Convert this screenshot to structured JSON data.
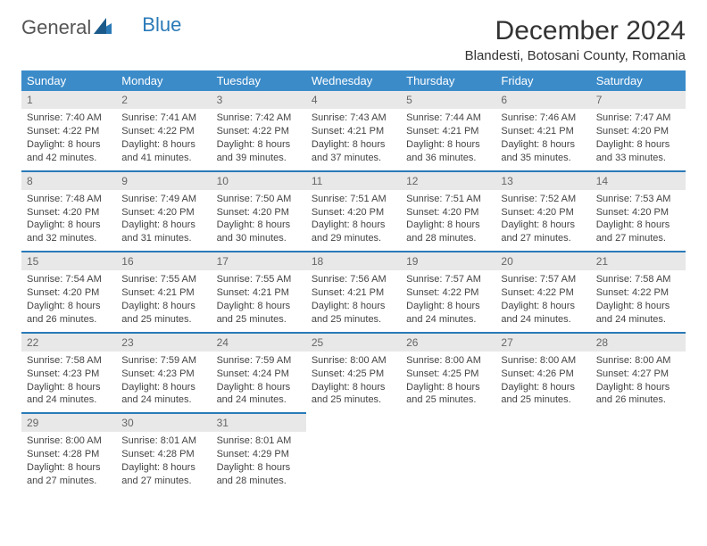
{
  "brand": {
    "part1": "General",
    "part2": "Blue"
  },
  "title": "December 2024",
  "location": "Blandesti, Botosani County, Romania",
  "colors": {
    "header_bg": "#3b8bc9",
    "frame": "#2a7ab8",
    "daynum_bg": "#e8e8e8"
  },
  "weekdays": [
    "Sunday",
    "Monday",
    "Tuesday",
    "Wednesday",
    "Thursday",
    "Friday",
    "Saturday"
  ],
  "weeks": [
    [
      {
        "n": "1",
        "sr": "7:40 AM",
        "ss": "4:22 PM",
        "dl": "8 hours and 42 minutes."
      },
      {
        "n": "2",
        "sr": "7:41 AM",
        "ss": "4:22 PM",
        "dl": "8 hours and 41 minutes."
      },
      {
        "n": "3",
        "sr": "7:42 AM",
        "ss": "4:22 PM",
        "dl": "8 hours and 39 minutes."
      },
      {
        "n": "4",
        "sr": "7:43 AM",
        "ss": "4:21 PM",
        "dl": "8 hours and 37 minutes."
      },
      {
        "n": "5",
        "sr": "7:44 AM",
        "ss": "4:21 PM",
        "dl": "8 hours and 36 minutes."
      },
      {
        "n": "6",
        "sr": "7:46 AM",
        "ss": "4:21 PM",
        "dl": "8 hours and 35 minutes."
      },
      {
        "n": "7",
        "sr": "7:47 AM",
        "ss": "4:20 PM",
        "dl": "8 hours and 33 minutes."
      }
    ],
    [
      {
        "n": "8",
        "sr": "7:48 AM",
        "ss": "4:20 PM",
        "dl": "8 hours and 32 minutes."
      },
      {
        "n": "9",
        "sr": "7:49 AM",
        "ss": "4:20 PM",
        "dl": "8 hours and 31 minutes."
      },
      {
        "n": "10",
        "sr": "7:50 AM",
        "ss": "4:20 PM",
        "dl": "8 hours and 30 minutes."
      },
      {
        "n": "11",
        "sr": "7:51 AM",
        "ss": "4:20 PM",
        "dl": "8 hours and 29 minutes."
      },
      {
        "n": "12",
        "sr": "7:51 AM",
        "ss": "4:20 PM",
        "dl": "8 hours and 28 minutes."
      },
      {
        "n": "13",
        "sr": "7:52 AM",
        "ss": "4:20 PM",
        "dl": "8 hours and 27 minutes."
      },
      {
        "n": "14",
        "sr": "7:53 AM",
        "ss": "4:20 PM",
        "dl": "8 hours and 27 minutes."
      }
    ],
    [
      {
        "n": "15",
        "sr": "7:54 AM",
        "ss": "4:20 PM",
        "dl": "8 hours and 26 minutes."
      },
      {
        "n": "16",
        "sr": "7:55 AM",
        "ss": "4:21 PM",
        "dl": "8 hours and 25 minutes."
      },
      {
        "n": "17",
        "sr": "7:55 AM",
        "ss": "4:21 PM",
        "dl": "8 hours and 25 minutes."
      },
      {
        "n": "18",
        "sr": "7:56 AM",
        "ss": "4:21 PM",
        "dl": "8 hours and 25 minutes."
      },
      {
        "n": "19",
        "sr": "7:57 AM",
        "ss": "4:22 PM",
        "dl": "8 hours and 24 minutes."
      },
      {
        "n": "20",
        "sr": "7:57 AM",
        "ss": "4:22 PM",
        "dl": "8 hours and 24 minutes."
      },
      {
        "n": "21",
        "sr": "7:58 AM",
        "ss": "4:22 PM",
        "dl": "8 hours and 24 minutes."
      }
    ],
    [
      {
        "n": "22",
        "sr": "7:58 AM",
        "ss": "4:23 PM",
        "dl": "8 hours and 24 minutes."
      },
      {
        "n": "23",
        "sr": "7:59 AM",
        "ss": "4:23 PM",
        "dl": "8 hours and 24 minutes."
      },
      {
        "n": "24",
        "sr": "7:59 AM",
        "ss": "4:24 PM",
        "dl": "8 hours and 24 minutes."
      },
      {
        "n": "25",
        "sr": "8:00 AM",
        "ss": "4:25 PM",
        "dl": "8 hours and 25 minutes."
      },
      {
        "n": "26",
        "sr": "8:00 AM",
        "ss": "4:25 PM",
        "dl": "8 hours and 25 minutes."
      },
      {
        "n": "27",
        "sr": "8:00 AM",
        "ss": "4:26 PM",
        "dl": "8 hours and 25 minutes."
      },
      {
        "n": "28",
        "sr": "8:00 AM",
        "ss": "4:27 PM",
        "dl": "8 hours and 26 minutes."
      }
    ],
    [
      {
        "n": "29",
        "sr": "8:00 AM",
        "ss": "4:28 PM",
        "dl": "8 hours and 27 minutes."
      },
      {
        "n": "30",
        "sr": "8:01 AM",
        "ss": "4:28 PM",
        "dl": "8 hours and 27 minutes."
      },
      {
        "n": "31",
        "sr": "8:01 AM",
        "ss": "4:29 PM",
        "dl": "8 hours and 28 minutes."
      },
      null,
      null,
      null,
      null
    ]
  ],
  "labels": {
    "sunrise": "Sunrise:",
    "sunset": "Sunset:",
    "daylight": "Daylight:"
  }
}
